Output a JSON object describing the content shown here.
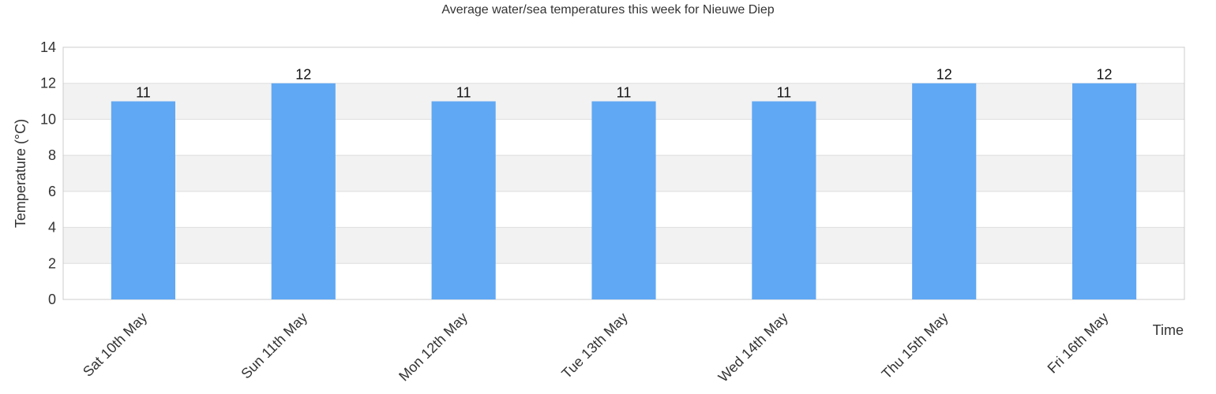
{
  "chart_data": {
    "type": "bar",
    "title": "Average water/sea temperatures this week for Nieuwe Diep",
    "xlabel": "Time",
    "ylabel": "Temperature (°C)",
    "ylim": [
      0,
      14
    ],
    "yticks": [
      0,
      2,
      4,
      6,
      8,
      10,
      12,
      14
    ],
    "categories": [
      "Sat 10th May",
      "Sun 11th May",
      "Mon 12th May",
      "Tue 13th May",
      "Wed 14th May",
      "Thu 15th May",
      "Fri 16th May"
    ],
    "values": [
      11,
      12,
      11,
      11,
      11,
      12,
      12
    ],
    "data_labels": [
      "11",
      "12",
      "11",
      "11",
      "11",
      "12",
      "12"
    ],
    "grid": true,
    "alternating_bands": true,
    "colors": {
      "bar": "#60a8f4",
      "band": "#f2f2f2",
      "grid": "#dddddd",
      "frame": "#cccccc",
      "text": "#333333",
      "label": "#111111"
    }
  }
}
